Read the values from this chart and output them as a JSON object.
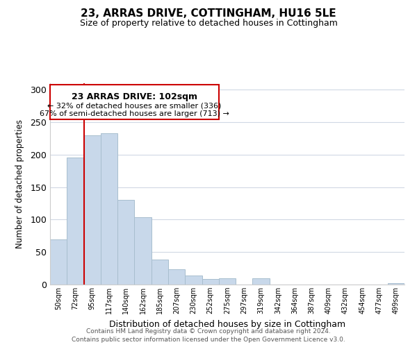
{
  "title": "23, ARRAS DRIVE, COTTINGHAM, HU16 5LE",
  "subtitle": "Size of property relative to detached houses in Cottingham",
  "xlabel": "Distribution of detached houses by size in Cottingham",
  "ylabel": "Number of detached properties",
  "bar_labels": [
    "50sqm",
    "72sqm",
    "95sqm",
    "117sqm",
    "140sqm",
    "162sqm",
    "185sqm",
    "207sqm",
    "230sqm",
    "252sqm",
    "275sqm",
    "297sqm",
    "319sqm",
    "342sqm",
    "364sqm",
    "387sqm",
    "409sqm",
    "432sqm",
    "454sqm",
    "477sqm",
    "499sqm"
  ],
  "bar_values": [
    69,
    196,
    230,
    233,
    130,
    104,
    39,
    24,
    14,
    9,
    10,
    0,
    10,
    0,
    0,
    0,
    0,
    0,
    0,
    0,
    2
  ],
  "bar_color": "#c8d8ea",
  "bar_edge_color": "#a8bece",
  "vline_color": "#cc0000",
  "vline_bar_index": 2,
  "annotation_box_title": "23 ARRAS DRIVE: 102sqm",
  "annotation_line1": "← 32% of detached houses are smaller (336)",
  "annotation_line2": "67% of semi-detached houses are larger (713) →",
  "annotation_box_edge": "#cc0000",
  "ylim": [
    0,
    310
  ],
  "yticks": [
    0,
    50,
    100,
    150,
    200,
    250,
    300
  ],
  "footer1": "Contains HM Land Registry data © Crown copyright and database right 2024.",
  "footer2": "Contains public sector information licensed under the Open Government Licence v3.0.",
  "bg_color": "#ffffff",
  "grid_color": "#d0d8e4"
}
